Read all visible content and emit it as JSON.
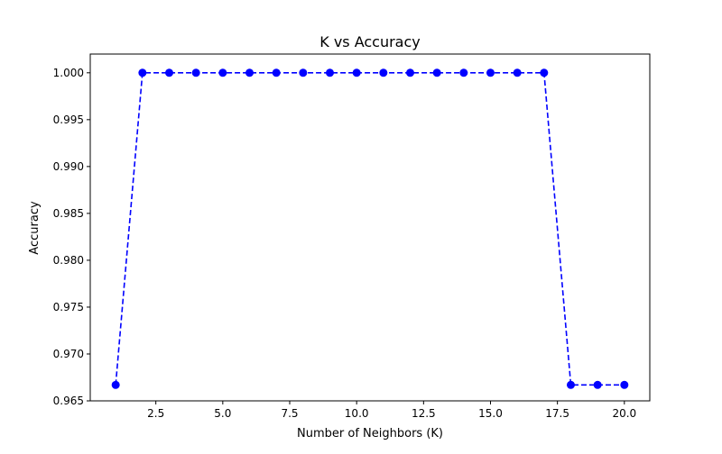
{
  "chart_data": {
    "type": "line",
    "title": "K vs Accuracy",
    "xlabel": "Number of Neighbors (K)",
    "ylabel": "Accuracy",
    "xlim": [
      0.05,
      20.95
    ],
    "ylim": [
      0.965,
      1.002
    ],
    "xticks": [
      2.5,
      5.0,
      7.5,
      10.0,
      12.5,
      15.0,
      17.5,
      20.0
    ],
    "xtick_labels": [
      "2.5",
      "5.0",
      "7.5",
      "10.0",
      "12.5",
      "15.0",
      "17.5",
      "20.0"
    ],
    "yticks": [
      0.965,
      0.97,
      0.975,
      0.98,
      0.985,
      0.99,
      0.995,
      1.0
    ],
    "ytick_labels": [
      "0.965",
      "0.970",
      "0.975",
      "0.980",
      "0.985",
      "0.990",
      "0.995",
      "1.000"
    ],
    "grid": false,
    "series": [
      {
        "color": "#0000ff",
        "line_style": "dashed",
        "marker": "circle",
        "x": [
          1,
          2,
          3,
          4,
          5,
          6,
          7,
          8,
          9,
          10,
          11,
          12,
          13,
          14,
          15,
          16,
          17,
          18,
          19,
          20
        ],
        "y": [
          0.9667,
          1.0,
          1.0,
          1.0,
          1.0,
          1.0,
          1.0,
          1.0,
          1.0,
          1.0,
          1.0,
          1.0,
          1.0,
          1.0,
          1.0,
          1.0,
          1.0,
          0.9667,
          0.9667,
          0.9667
        ]
      }
    ]
  }
}
